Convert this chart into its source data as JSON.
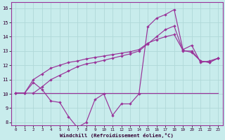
{
  "xlabel": "Windchill (Refroidissement éolien,°C)",
  "bg_color": "#c8ecec",
  "grid_color": "#b0d8d8",
  "line_color": "#993399",
  "x_ticks": [
    0,
    1,
    2,
    3,
    4,
    5,
    6,
    7,
    8,
    9,
    10,
    11,
    12,
    13,
    14,
    15,
    16,
    17,
    18,
    19,
    20,
    21,
    22,
    23
  ],
  "y_ticks": [
    8,
    9,
    10,
    11,
    12,
    13,
    14,
    15,
    16
  ],
  "ylim": [
    7.8,
    16.4
  ],
  "xlim": [
    -0.5,
    23.5
  ],
  "line1_x": [
    0,
    1,
    2,
    3,
    4,
    5,
    6,
    7,
    8,
    9,
    10,
    11,
    12,
    13,
    14,
    15,
    16,
    17,
    18,
    19,
    20,
    21,
    22,
    23
  ],
  "line1_y": [
    10.05,
    10.05,
    10.8,
    10.3,
    9.5,
    9.4,
    8.4,
    7.65,
    8.0,
    9.6,
    10.0,
    8.5,
    9.3,
    9.3,
    10.0,
    14.7,
    15.3,
    15.55,
    15.9,
    13.1,
    13.4,
    12.2,
    12.3,
    12.5
  ],
  "line2_x": [
    2,
    23
  ],
  "line2_y": [
    10.05,
    10.05
  ],
  "line3_x": [
    0,
    1,
    2,
    3,
    4,
    5,
    6,
    7,
    8,
    9,
    10,
    11,
    12,
    13,
    14,
    15,
    16,
    17,
    18,
    19,
    20,
    21,
    22,
    23
  ],
  "line3_y": [
    10.05,
    10.05,
    10.05,
    10.5,
    11.0,
    11.3,
    11.6,
    11.9,
    12.1,
    12.2,
    12.35,
    12.5,
    12.65,
    12.8,
    13.0,
    13.5,
    14.0,
    14.5,
    14.75,
    13.0,
    13.0,
    12.3,
    12.2,
    12.5
  ],
  "line4_x": [
    0,
    1,
    2,
    3,
    4,
    5,
    6,
    7,
    8,
    9,
    10,
    11,
    12,
    13,
    14,
    15,
    16,
    17,
    18,
    19,
    20,
    21,
    22,
    23
  ],
  "line4_y": [
    10.05,
    10.05,
    11.0,
    11.4,
    11.8,
    12.0,
    12.2,
    12.3,
    12.45,
    12.55,
    12.65,
    12.75,
    12.85,
    12.95,
    13.1,
    13.55,
    13.8,
    14.0,
    14.15,
    13.05,
    12.9,
    12.3,
    12.2,
    12.5
  ]
}
